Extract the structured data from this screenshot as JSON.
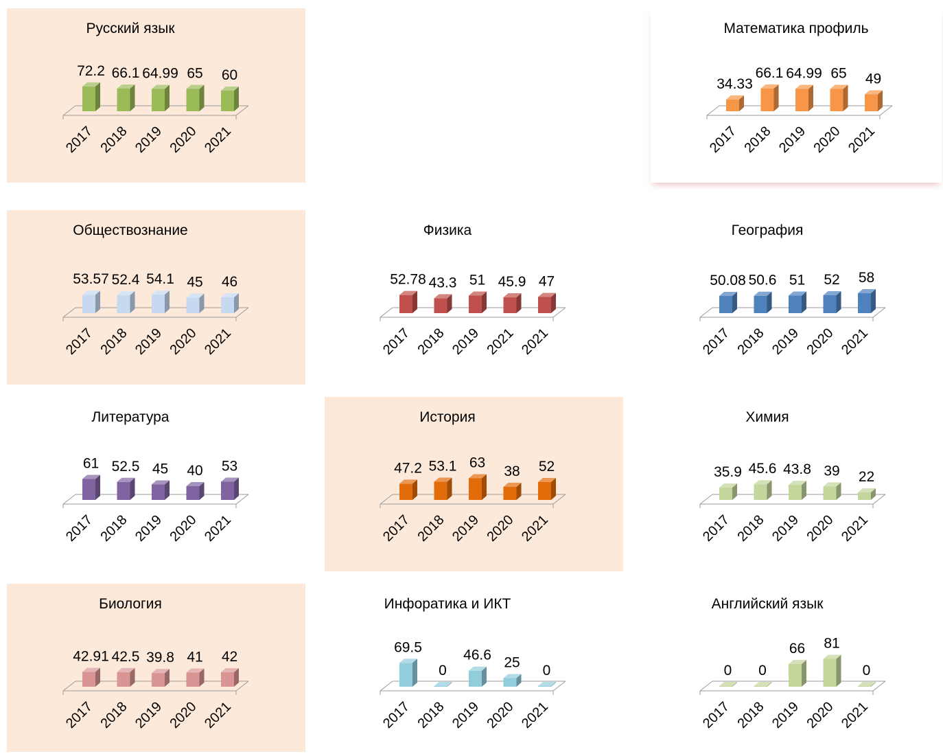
{
  "chart_data": [
    {
      "type": "bar",
      "title": "Русский язык",
      "categories": [
        "2017",
        "2018",
        "2019",
        "2020",
        "2021"
      ],
      "values": [
        72.2,
        66.1,
        64.99,
        65,
        60
      ],
      "value_labels": [
        "72.2",
        "66.1",
        "64.99",
        "65",
        "60"
      ],
      "color": "#9bbb59",
      "panel": "shaded"
    },
    {
      "type": "bar",
      "title": "Математика профиль",
      "categories": [
        "2017",
        "2018",
        "2019",
        "2020",
        "2021"
      ],
      "values": [
        34.33,
        66.1,
        64.99,
        65,
        49
      ],
      "value_labels": [
        "34.33",
        "66.1",
        "64.99",
        "65",
        "49"
      ],
      "color": "#f79646",
      "panel": "raised"
    },
    {
      "type": "bar",
      "title": "Обществознание",
      "categories": [
        "2017",
        "2018",
        "2019",
        "2020",
        "2021"
      ],
      "values": [
        53.57,
        52.4,
        54.1,
        45,
        46
      ],
      "value_labels": [
        "53.57",
        "52.4",
        "54.1",
        "45",
        "46"
      ],
      "color": "#c6d9f1",
      "panel": "shaded"
    },
    {
      "type": "bar",
      "title": "Физика",
      "categories": [
        "2017",
        "2018",
        "2019",
        "2021",
        "2021"
      ],
      "values": [
        52.78,
        43.3,
        51,
        45.9,
        47
      ],
      "value_labels": [
        "52.78",
        "43.3",
        "51",
        "45.9",
        "47"
      ],
      "color": "#c0504d",
      "panel": "none"
    },
    {
      "type": "bar",
      "title": "География",
      "categories": [
        "2017",
        "2018",
        "2019",
        "2020",
        "2021"
      ],
      "values": [
        50.08,
        50.6,
        51,
        52,
        58
      ],
      "value_labels": [
        "50.08",
        "50.6",
        "51",
        "52",
        "58"
      ],
      "color": "#4f81bd",
      "panel": "none"
    },
    {
      "type": "bar",
      "title": "Литература",
      "categories": [
        "2017",
        "2018",
        "2019",
        "2020",
        "2021"
      ],
      "values": [
        61,
        52.5,
        45,
        40,
        53
      ],
      "value_labels": [
        "61",
        "52.5",
        "45",
        "40",
        "53"
      ],
      "color": "#8064a2",
      "panel": "none"
    },
    {
      "type": "bar",
      "title": "История",
      "categories": [
        "2017",
        "2018",
        "2019",
        "2020",
        "2021"
      ],
      "values": [
        47.2,
        53.1,
        63,
        38,
        52
      ],
      "value_labels": [
        "47.2",
        "53.1",
        "63",
        "38",
        "52"
      ],
      "color": "#e36c0a",
      "panel": "shaded"
    },
    {
      "type": "bar",
      "title": "Химия",
      "categories": [
        "2017",
        "2018",
        "2019",
        "2020",
        "2021"
      ],
      "values": [
        35.9,
        45.6,
        43.8,
        39,
        22
      ],
      "value_labels": [
        "35.9",
        "45.6",
        "43.8",
        "39",
        "22"
      ],
      "color": "#c3d69b",
      "panel": "none"
    },
    {
      "type": "bar",
      "title": "Биология",
      "categories": [
        "2017",
        "2018",
        "2019",
        "2020",
        "2021"
      ],
      "values": [
        42.91,
        42.5,
        39.8,
        41,
        42
      ],
      "value_labels": [
        "42.91",
        "42.5",
        "39.8",
        "41",
        "42"
      ],
      "color": "#d99594",
      "panel": "shaded"
    },
    {
      "type": "bar",
      "title": "Инфоратика и ИКТ",
      "categories": [
        "2017",
        "2018",
        "2019",
        "2020",
        "2021"
      ],
      "values": [
        69.5,
        0,
        46.6,
        25,
        0
      ],
      "value_labels": [
        "69.5",
        "0",
        "46.6",
        "25",
        "0"
      ],
      "color": "#92cddc",
      "panel": "none"
    },
    {
      "type": "bar",
      "title": "Английский язык",
      "categories": [
        "2017",
        "2018",
        "2019",
        "2020",
        "2021"
      ],
      "values": [
        0,
        0,
        66,
        81,
        0
      ],
      "value_labels": [
        "0",
        "0",
        "66",
        "81",
        "0"
      ],
      "color": "#c3d69b",
      "panel": "none"
    }
  ]
}
